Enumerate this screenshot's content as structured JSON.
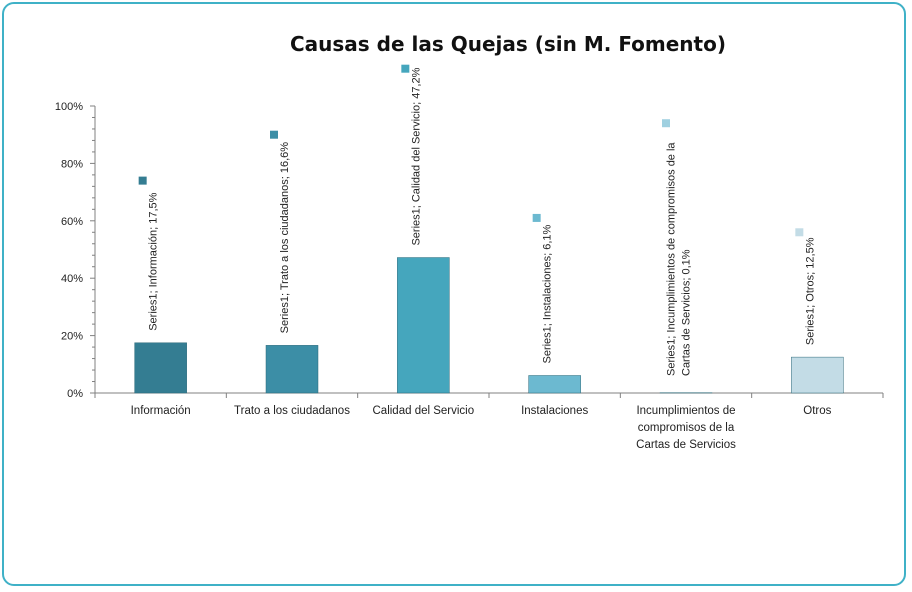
{
  "chart_data": {
    "type": "bar",
    "title": "Causas de las Quejas (sin M. Fomento)",
    "xlabel": "",
    "ylabel": "",
    "ylim": [
      0,
      100
    ],
    "y_ticks": [
      "0%",
      "20%",
      "40%",
      "60%",
      "80%",
      "100%"
    ],
    "grid": false,
    "legend": "none",
    "categories": [
      "Información",
      "Trato a los ciudadanos",
      "Calidad del Servicio",
      "Instalaciones",
      "Incumplimientos de compromisos de la Cartas de Servicios",
      "Otros"
    ],
    "category_lines": [
      [
        "Información"
      ],
      [
        "Trato a los ciudadanos"
      ],
      [
        "Calidad del Servicio"
      ],
      [
        "Instalaciones"
      ],
      [
        "Incumplimientos de",
        "compromisos de la",
        "Cartas de Servicios"
      ],
      [
        "Otros"
      ]
    ],
    "series": [
      {
        "values": [
          17.5,
          16.6,
          47.2,
          6.1,
          0.1,
          12.5
        ],
        "data_labels": [
          [
            "Series1; Información; 17,5%"
          ],
          [
            "Series1; Trato a los ciudadanos; 16,6%"
          ],
          [
            "Series1; Calidad del Servicio; 47,2%"
          ],
          [
            "Series1; Instalaciones; 6,1%"
          ],
          [
            "Series1; Incumplimientos de compromisos de la",
            "Cartas de Servicios; 0,1%"
          ],
          [
            "Series1; Otros; 12,5%"
          ]
        ]
      }
    ],
    "colors": [
      "#347d92",
      "#3c8ea6",
      "#45a6bd",
      "#6cb9d0",
      "#9fd0e0",
      "#c3dce6"
    ]
  }
}
